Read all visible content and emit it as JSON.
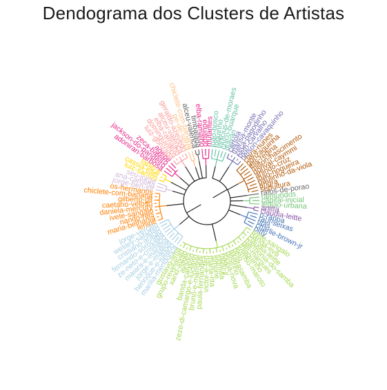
{
  "title": "Dendograma dos Clusters de Artistas",
  "colors": {
    "c1": "#66c2a5",
    "c2": "#7570b3",
    "c3": "#b35806",
    "c4": "#666666",
    "c5": "#1b9e77",
    "c6": "#74c476",
    "c7": "#4575b4",
    "c8": "#8856a7",
    "c9": "#a6cee3",
    "c10": "#a6d854",
    "c11": "#fdae61",
    "c12": "#ff7f00",
    "c13": "#d4b9da",
    "c14": "#ffd700",
    "c15": "#e7298a",
    "c16": "#fb9a99",
    "c17": "#fdc086",
    "c18": "#636363",
    "c19": "#e7298a"
  },
  "leaves": [
    {
      "name": "joao-bosco",
      "color": "c1"
    },
    {
      "name": "toquinho",
      "color": "c1"
    },
    {
      "name": "vinicius-de-moraes",
      "color": "c1"
    },
    {
      "name": "chico-buarque",
      "color": "c1"
    },
    {
      "name": "djavan",
      "color": "c1"
    },
    {
      "name": "cartola",
      "color": "c2"
    },
    {
      "name": "marisa-monte",
      "color": "c2"
    },
    {
      "name": "zeca-pagodinho",
      "color": "c2"
    },
    {
      "name": "beth-carvalho",
      "color": "c2"
    },
    {
      "name": "nelson-cavaquinho",
      "color": "c2"
    },
    {
      "name": "clara-nunes",
      "color": "c3"
    },
    {
      "name": "gonzaguinha",
      "color": "c3"
    },
    {
      "name": "elis-regina",
      "color": "c3"
    },
    {
      "name": "milton-nascimento",
      "color": "c3"
    },
    {
      "name": "dorival-caymmi",
      "color": "c3"
    },
    {
      "name": "arlindo-cruz",
      "color": "c3"
    },
    {
      "name": "joao-nogueira",
      "color": "c3"
    },
    {
      "name": "paulinho-da-viola",
      "color": "c3"
    },
    {
      "name": "angra",
      "color": "c3"
    },
    {
      "name": "sepultura",
      "color": "c3"
    },
    {
      "name": "ratos-de-porao",
      "color": "c4"
    },
    {
      "name": "raimundos",
      "color": "c6"
    },
    {
      "name": "capital-inicial",
      "color": "c6"
    },
    {
      "name": "legiao-urbana",
      "color": "c6"
    },
    {
      "name": "anitta",
      "color": "c8"
    },
    {
      "name": "claudia-leitte",
      "color": "c8"
    },
    {
      "name": "o-rappa",
      "color": "c7"
    },
    {
      "name": "raul-seixas",
      "color": "c7"
    },
    {
      "name": "titas",
      "color": "c7"
    },
    {
      "name": "charlie-brown-jr",
      "color": "c7"
    },
    {
      "name": "pitty",
      "color": "c7"
    },
    {
      "name": "ivete-sangalo",
      "color": "c10"
    },
    {
      "name": "banda-eva",
      "color": "c10"
    },
    {
      "name": "claudia-leitte",
      "color": "c10"
    },
    {
      "name": "harmonia-do-samba",
      "color": "c10"
    },
    {
      "name": "bel-marques",
      "color": "c10"
    },
    {
      "name": "thiaguinho",
      "color": "c10"
    },
    {
      "name": "sorriso-maroto",
      "color": "c10"
    },
    {
      "name": "belo",
      "color": "c10"
    },
    {
      "name": "exaltasamba",
      "color": "c10"
    },
    {
      "name": "dilsinho",
      "color": "c10"
    },
    {
      "name": "roupa-nova",
      "color": "c10"
    },
    {
      "name": "fabio-jr",
      "color": "c10"
    },
    {
      "name": "ludmilla",
      "color": "c10"
    },
    {
      "name": "simone",
      "color": "c10"
    },
    {
      "name": "maria-rita",
      "color": "c10"
    },
    {
      "name": "victor-e-leo",
      "color": "c10"
    },
    {
      "name": "paula-fernandes",
      "color": "c10"
    },
    {
      "name": "bruno-e-marrone",
      "color": "c10"
    },
    {
      "name": "zeze-di-camargo-e-luciano",
      "color": "c10"
    },
    {
      "name": "banda-calypso",
      "color": "c10"
    },
    {
      "name": "aviões",
      "color": "c10"
    },
    {
      "name": "xand-aviao",
      "color": "c10"
    },
    {
      "name": "grupo-revelacao",
      "color": "c10"
    },
    {
      "name": "gustavo-lima",
      "color": "c10"
    },
    {
      "name": "marilia-mendonca",
      "color": "c9"
    },
    {
      "name": "henrique-e-juliano",
      "color": "c9"
    },
    {
      "name": "jorge-e-mateus",
      "color": "c9"
    },
    {
      "name": "maiara-e-maraisa",
      "color": "c9"
    },
    {
      "name": "ze-neto-e-cristiano",
      "color": "c9"
    },
    {
      "name": "fernando-sorocaba",
      "color": "c9"
    },
    {
      "name": "cristiano-araujo",
      "color": "c9"
    },
    {
      "name": "wesley-safadao",
      "color": "c9"
    },
    {
      "name": "jorge-vercillo",
      "color": "c9"
    },
    {
      "name": "lenine",
      "color": "c12"
    },
    {
      "name": "maria-bethania",
      "color": "c12"
    },
    {
      "name": "nando-reis",
      "color": "c12"
    },
    {
      "name": "ivete-sangalo",
      "color": "c12"
    },
    {
      "name": "daniela-mercury",
      "color": "c12"
    },
    {
      "name": "caetano-veloso",
      "color": "c12"
    },
    {
      "name": "gilberto-gil",
      "color": "c12"
    },
    {
      "name": "chiclete-com-banana",
      "color": "c12"
    },
    {
      "name": "os-hermanos",
      "color": "c12"
    },
    {
      "name": "jorge-ben-jor",
      "color": "c13"
    },
    {
      "name": "ana-carolina",
      "color": "c13"
    },
    {
      "name": "seu-jorge",
      "color": "c13"
    },
    {
      "name": "luiz-santos",
      "color": "c14"
    },
    {
      "name": "cassia-eller",
      "color": "c14"
    },
    {
      "name": "fabio-jr",
      "color": "c14"
    },
    {
      "name": "adoniran-barbosa",
      "color": "c15"
    },
    {
      "name": "jackson-do-pandeiro",
      "color": "c15"
    },
    {
      "name": "zeca-baleiro",
      "color": "c15"
    },
    {
      "name": "agepe",
      "color": "c15"
    },
    {
      "name": "luiz-gonzaga",
      "color": "c16"
    },
    {
      "name": "dominguinhos",
      "color": "c16"
    },
    {
      "name": "elba-ramalho",
      "color": "c16"
    },
    {
      "name": "alceu-valenca",
      "color": "c16"
    },
    {
      "name": "geraldo-azevedo",
      "color": "c16"
    },
    {
      "name": "pe-de-serra",
      "color": "c17"
    },
    {
      "name": "chiclete-com-banana",
      "color": "c17"
    },
    {
      "name": "alceu-valenca",
      "color": "c18"
    },
    {
      "name": "timbalada",
      "color": "c18"
    },
    {
      "name": "elba-ramalho",
      "color": "c19"
    },
    {
      "name": "eduardo",
      "color": "c19"
    },
    {
      "name": "mutantes",
      "color": "c19"
    }
  ]
}
